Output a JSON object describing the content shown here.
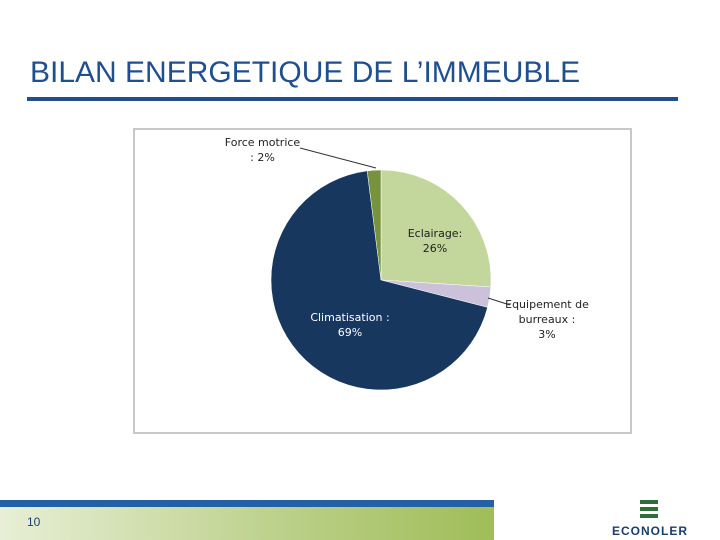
{
  "slide": {
    "title": "BILAN ENERGETIQUE DE L’IMMEUBLE",
    "page_number": "10",
    "logo": "ECONOLER"
  },
  "chart_data": {
    "type": "pie",
    "categories": [
      "Eclairage:",
      "Equipement de burreaux :",
      "Climatisation :",
      "Force motrice"
    ],
    "values": [
      26,
      3,
      69,
      2
    ],
    "value_labels": [
      "26%",
      "3%",
      "69%",
      ": 2%"
    ],
    "colors": [
      "#c3d69b",
      "#ccc1da",
      "#17375e",
      "#77933c"
    ]
  }
}
